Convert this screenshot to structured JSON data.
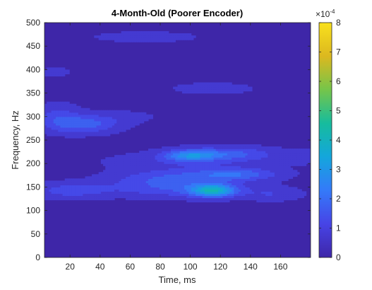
{
  "chart_data": {
    "type": "heatmap",
    "title": "4-Month-Old (Poorer Encoder)",
    "xlabel": "Time, ms",
    "ylabel": "Frequency, Hz",
    "xlim": [
      3,
      180
    ],
    "ylim": [
      0,
      500
    ],
    "x_ticks": [
      "20",
      "40",
      "60",
      "80",
      "100",
      "120",
      "140",
      "160"
    ],
    "x_tick_values": [
      20,
      40,
      60,
      80,
      100,
      120,
      140,
      160
    ],
    "y_ticks": [
      "0",
      "50",
      "100",
      "150",
      "200",
      "250",
      "300",
      "350",
      "400",
      "450",
      "500"
    ],
    "y_tick_values": [
      0,
      50,
      100,
      150,
      200,
      250,
      300,
      350,
      400,
      450,
      500
    ],
    "colorbar": {
      "clim": [
        0,
        8
      ],
      "ticks": [
        "0",
        "1",
        "2",
        "3",
        "4",
        "5",
        "6",
        "7",
        "8"
      ],
      "tick_values": [
        0,
        1,
        2,
        3,
        4,
        5,
        6,
        7,
        8
      ],
      "exponent_label": "×10",
      "exponent": "-4"
    },
    "colormap": [
      "#3e26a8",
      "#4744e6",
      "#347af9",
      "#14a6dc",
      "#16bc9d",
      "#75c54a",
      "#dcb81f",
      "#f9e11d"
    ],
    "background_value": 0.3,
    "hotspots": [
      {
        "t": 115,
        "f": 143,
        "st": 10,
        "sf": 9,
        "amp": 3.1
      },
      {
        "t": 92,
        "f": 150,
        "st": 32,
        "sf": 15,
        "amp": 1.2
      },
      {
        "t": 20,
        "f": 143,
        "st": 18,
        "sf": 12,
        "amp": 0.9
      },
      {
        "t": 155,
        "f": 135,
        "st": 14,
        "sf": 10,
        "amp": 0.6
      },
      {
        "t": 100,
        "f": 218,
        "st": 12,
        "sf": 8,
        "amp": 1.9
      },
      {
        "t": 125,
        "f": 222,
        "st": 22,
        "sf": 10,
        "amp": 1.2
      },
      {
        "t": 130,
        "f": 178,
        "st": 20,
        "sf": 9,
        "amp": 1.5
      },
      {
        "t": 85,
        "f": 172,
        "st": 25,
        "sf": 12,
        "amp": 0.8
      },
      {
        "t": 30,
        "f": 285,
        "st": 16,
        "sf": 14,
        "amp": 1.4
      },
      {
        "t": 12,
        "f": 300,
        "st": 10,
        "sf": 20,
        "amp": 0.8
      },
      {
        "t": 60,
        "f": 300,
        "st": 15,
        "sf": 10,
        "amp": 0.3
      },
      {
        "t": 115,
        "f": 360,
        "st": 18,
        "sf": 8,
        "amp": 0.6
      },
      {
        "t": 70,
        "f": 470,
        "st": 25,
        "sf": 8,
        "amp": 0.5
      },
      {
        "t": 10,
        "f": 395,
        "st": 8,
        "sf": 8,
        "amp": 0.4
      },
      {
        "t": 100,
        "f": 205,
        "st": 40,
        "sf": 14,
        "amp": 0.6
      },
      {
        "t": 175,
        "f": 215,
        "st": 8,
        "sf": 10,
        "amp": 0.5
      }
    ]
  }
}
